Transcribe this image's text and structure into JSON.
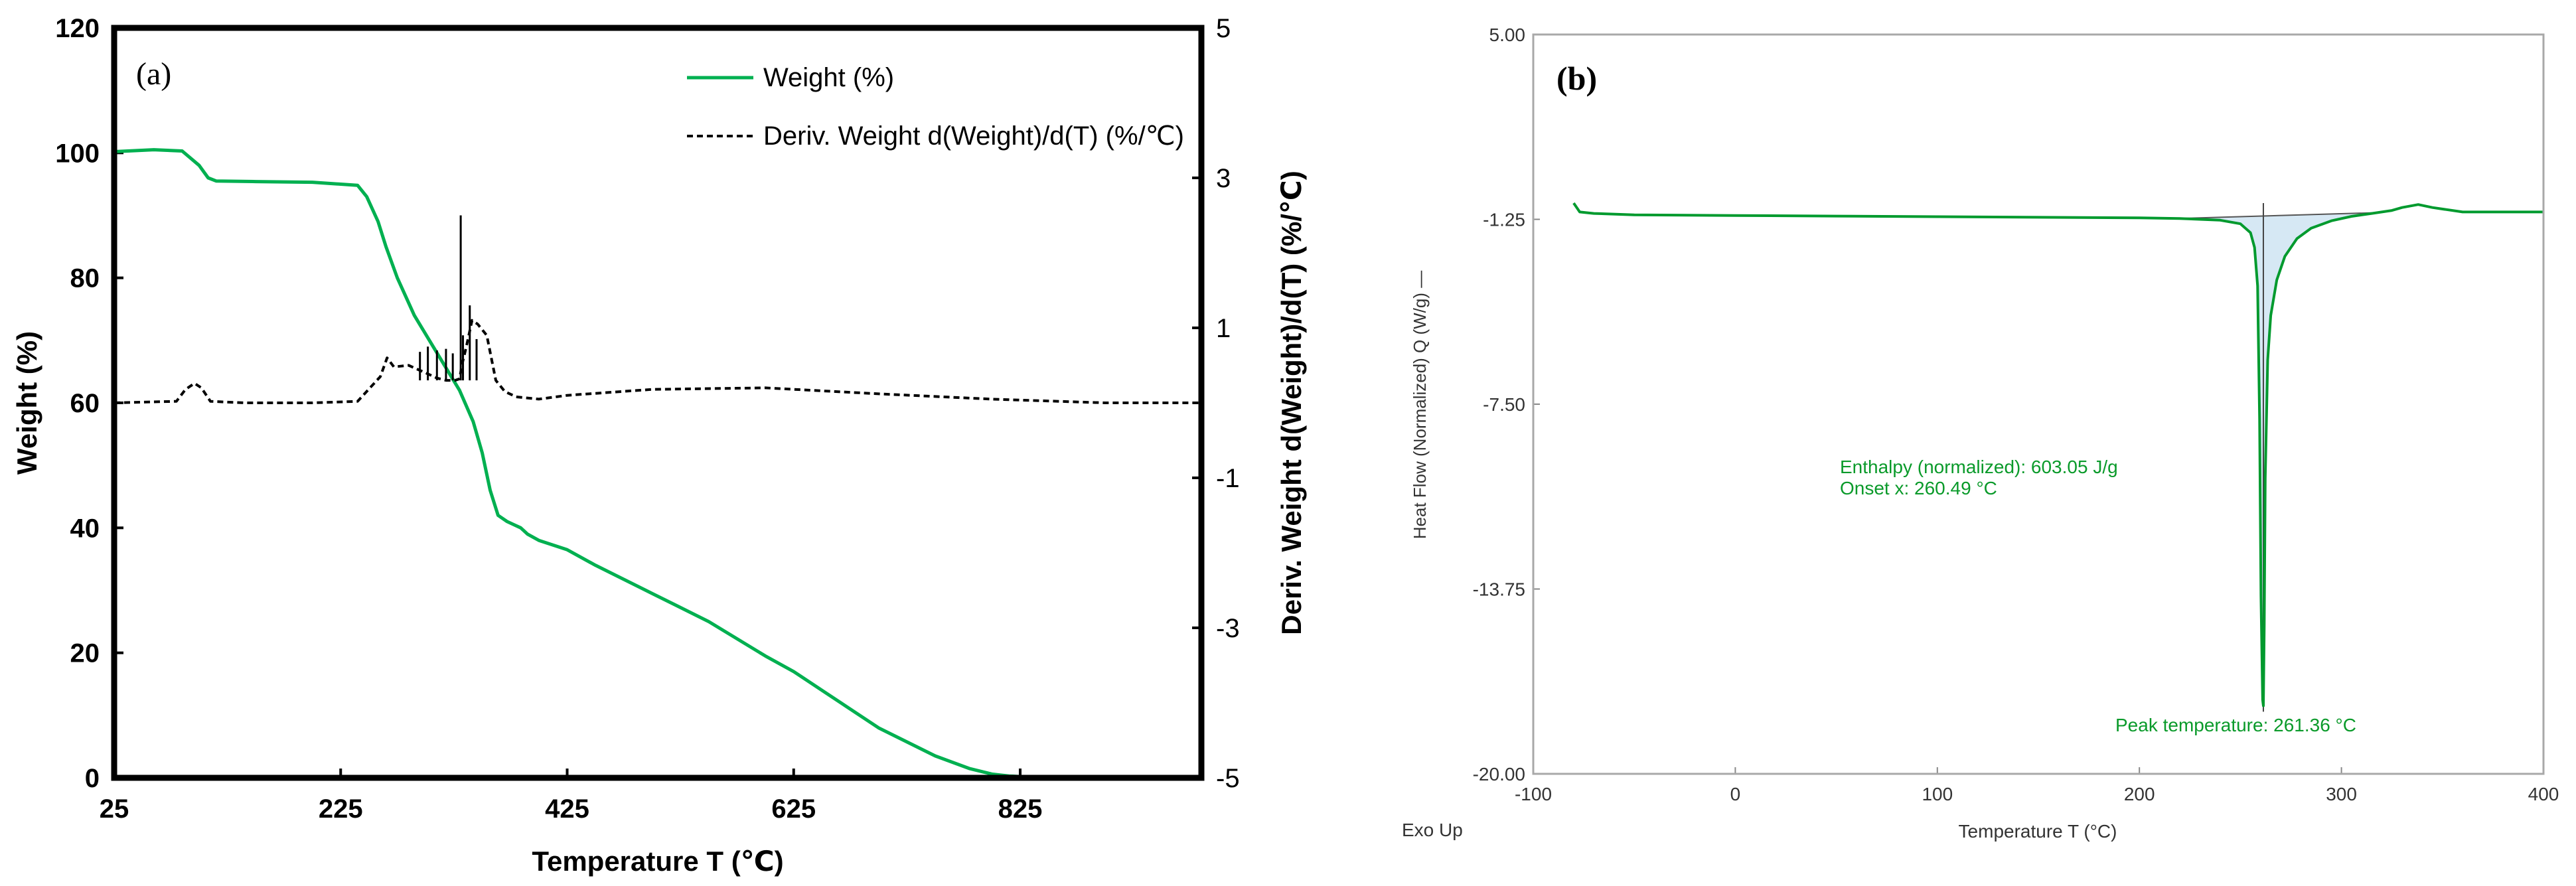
{
  "chart_data": [
    {
      "panel": "(a)",
      "type": "line",
      "xlabel": "Temperature T (℃)",
      "ylabel": "Weight (%)",
      "y2label": "Deriv. Weight d(Weight)/d(T) (%/℃)",
      "xlim": [
        25,
        985
      ],
      "ylim": [
        0,
        120
      ],
      "y2lim": [
        -5,
        5
      ],
      "xticks": [
        25,
        225,
        425,
        625,
        825
      ],
      "yticks": [
        0,
        20,
        40,
        60,
        80,
        100,
        120
      ],
      "y2ticks": [
        -5,
        -3,
        -1,
        1,
        3,
        5
      ],
      "grid": false,
      "legend_position": "top-right",
      "series": [
        {
          "name": "Weight (%)",
          "axis": "left",
          "color": "#00b050",
          "style": "solid",
          "x": [
            25,
            60,
            85,
            100,
            108,
            115,
            150,
            200,
            240,
            248,
            258,
            265,
            275,
            290,
            310,
            330,
            342,
            350,
            357,
            364,
            372,
            378,
            384,
            390,
            400,
            425,
            450,
            500,
            550,
            600,
            625,
            650,
            700,
            750,
            780,
            800,
            815,
            825,
            850,
            900,
            985
          ],
          "values": [
            100.2,
            100.5,
            100.3,
            98,
            96,
            95.5,
            95.4,
            95.3,
            94.8,
            93,
            89,
            85,
            80,
            74,
            68,
            62,
            57,
            52,
            46,
            42,
            41,
            40.5,
            40,
            39,
            38,
            36.5,
            34,
            29.5,
            25,
            19.5,
            17,
            14,
            8,
            3.5,
            1.5,
            0.6,
            0.3,
            0.2,
            0.2,
            0.2,
            0.2
          ]
        },
        {
          "name": "Deriv. Weight d(Weight)/d(T) (%/℃)",
          "axis": "right",
          "color": "#000000",
          "style": "dashed",
          "x": [
            25,
            80,
            88,
            96,
            102,
            110,
            140,
            200,
            240,
            260,
            266,
            272,
            285,
            300,
            310,
            318,
            326,
            330,
            332,
            336,
            341,
            346,
            354,
            362,
            370,
            380,
            400,
            425,
            500,
            600,
            700,
            800,
            900,
            985
          ],
          "values": [
            0,
            0.02,
            0.18,
            0.26,
            0.2,
            0.02,
            0,
            0,
            0.02,
            0.35,
            0.6,
            0.48,
            0.5,
            0.4,
            0.33,
            0.3,
            0.3,
            0.32,
            0.5,
            0.75,
            1.1,
            1.05,
            0.9,
            0.3,
            0.15,
            0.08,
            0.05,
            0.1,
            0.18,
            0.2,
            0.12,
            0.05,
            0,
            0
          ]
        },
        {
          "name": "derivative noise spikes",
          "axis": "right",
          "color": "#000000",
          "style": "solid",
          "x": [
            295,
            302,
            310,
            318,
            324,
            331,
            333,
            339,
            345
          ],
          "values": [
            0.68,
            0.75,
            0.7,
            0.72,
            0.66,
            2.5,
            0.9,
            1.3,
            0.85
          ]
        }
      ],
      "legend": [
        "Weight (%)",
        "Deriv. Weight d(Weight)/d(T) (%/℃)"
      ]
    },
    {
      "panel": "(b)",
      "type": "line",
      "xlabel": "Temperature T (°C)",
      "ylabel": "Heat Flow (Normalized) Q (W/g) —",
      "corner_label": "Exo Up",
      "xlim": [
        -100,
        400
      ],
      "ylim": [
        -20,
        5
      ],
      "xticks": [
        -100,
        0,
        100,
        200,
        300,
        400
      ],
      "yticks": [
        "5.00",
        "-1.25",
        "-7.50",
        "-13.75",
        "-20.00"
      ],
      "grid": false,
      "series": [
        {
          "name": "Heat Flow",
          "color": "#009a2e",
          "x": [
            -80,
            -77,
            -70,
            -50,
            0,
            50,
            100,
            150,
            200,
            220,
            240,
            250,
            255,
            257,
            258.5,
            259.5,
            260.2,
            261,
            261.36,
            261.8,
            262.3,
            263.5,
            265,
            268,
            272,
            278,
            285,
            295,
            305,
            315,
            325,
            330,
            338,
            345,
            360,
            380,
            400
          ],
          "values": [
            -0.7,
            -1.0,
            -1.05,
            -1.1,
            -1.12,
            -1.14,
            -1.16,
            -1.18,
            -1.2,
            -1.22,
            -1.28,
            -1.4,
            -1.7,
            -2.2,
            -3.5,
            -8,
            -14,
            -17.5,
            -17.7,
            -15,
            -10,
            -6,
            -4.5,
            -3.3,
            -2.5,
            -1.9,
            -1.55,
            -1.3,
            -1.15,
            -1.05,
            -0.95,
            -0.85,
            -0.75,
            -0.85,
            -1.0,
            -1.0,
            -1.0
          ]
        }
      ],
      "baseline": {
        "x": [
          220,
          315
        ],
        "values": [
          -1.22,
          -1.03
        ]
      },
      "annotations": {
        "enthalpy": "Enthalpy (normalized): 603.05 J/g",
        "onset": "Onset x: 260.49 °C",
        "peak": "Peak temperature: 261.36 °C"
      },
      "values": {
        "enthalpy_J_per_g": 603.05,
        "onset_C": 260.49,
        "peak_C": 261.36
      }
    }
  ]
}
